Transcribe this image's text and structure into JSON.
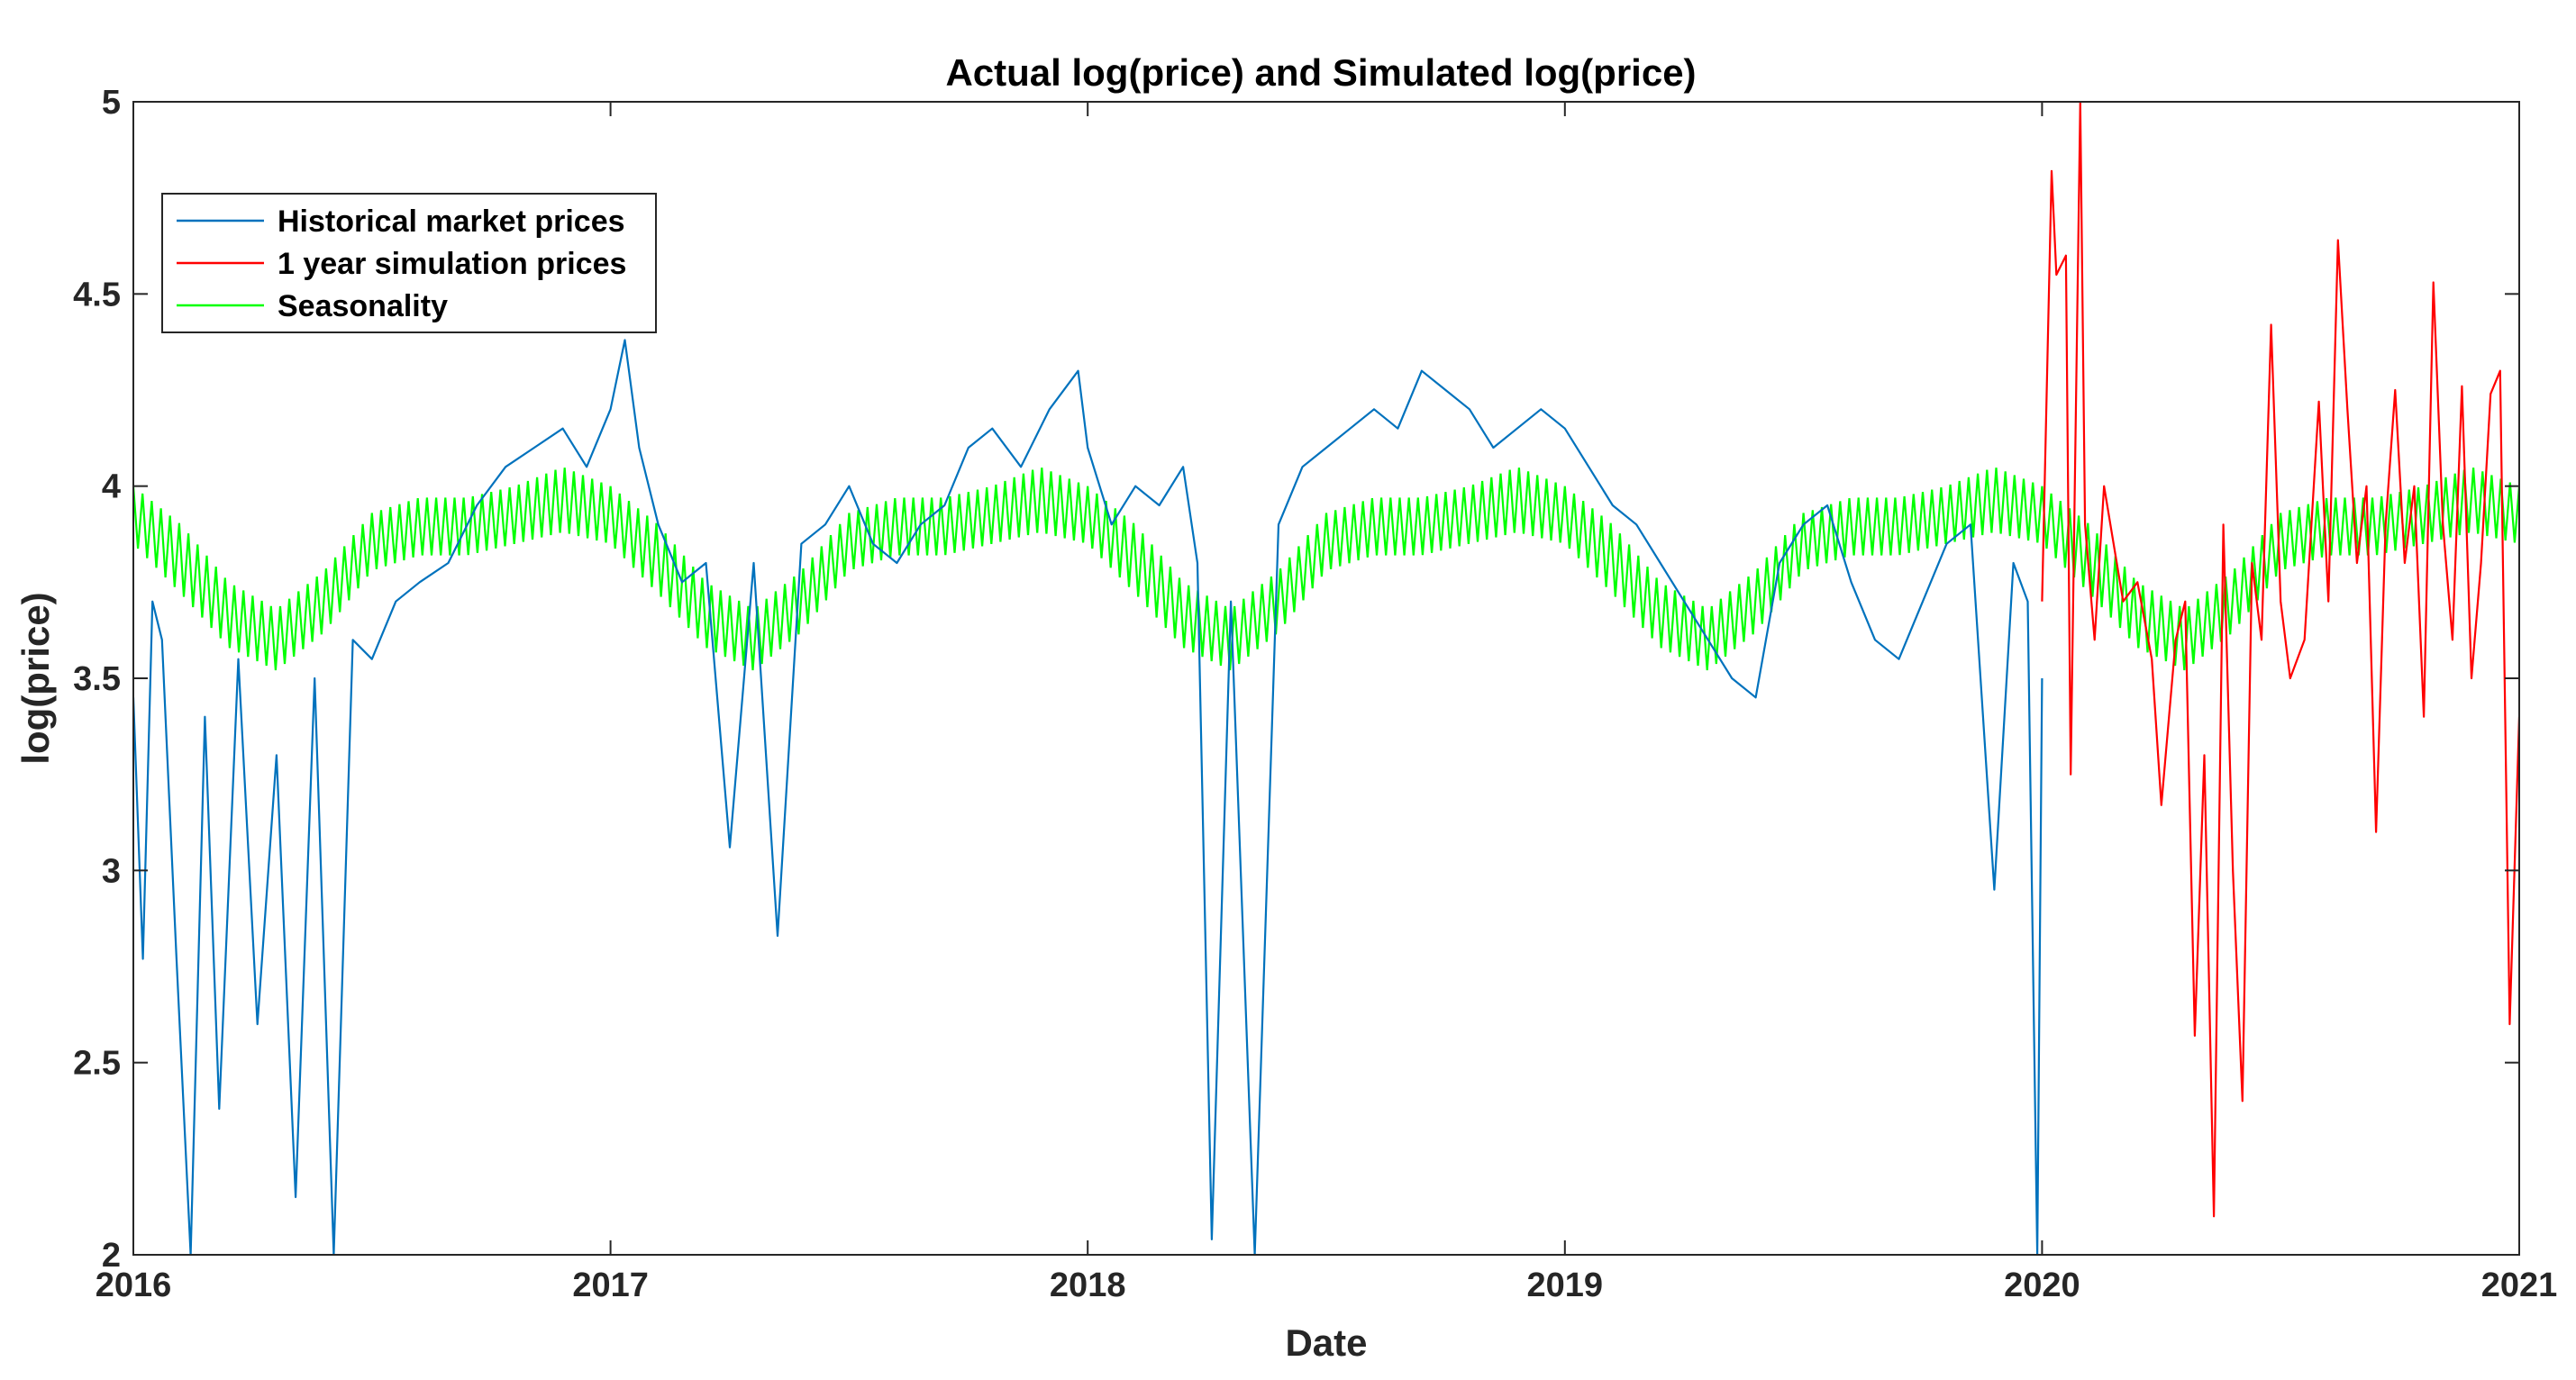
{
  "chart_data": {
    "type": "line",
    "title": "Actual log(price) and Simulated log(price)",
    "xlabel": "Date",
    "ylabel": "log(price)",
    "xlim": [
      2016,
      2021
    ],
    "ylim": [
      2,
      5
    ],
    "x_ticks": [
      "2016",
      "2017",
      "2018",
      "2019",
      "2020",
      "2021"
    ],
    "y_ticks": [
      "2",
      "2.5",
      "3",
      "3.5",
      "4",
      "4.5",
      "5"
    ],
    "legend_position": "top-left",
    "series": [
      {
        "name": "Historical market prices",
        "color": "#0072BD",
        "x": [
          2016.0,
          2016.02,
          2016.04,
          2016.06,
          2016.09,
          2016.12,
          2016.15,
          2016.18,
          2016.22,
          2016.26,
          2016.3,
          2016.34,
          2016.38,
          2016.42,
          2016.46,
          2016.5,
          2016.55,
          2016.6,
          2016.66,
          2016.72,
          2016.78,
          2016.84,
          2016.9,
          2016.95,
          2017.0,
          2017.03,
          2017.06,
          2017.1,
          2017.15,
          2017.2,
          2017.25,
          2017.3,
          2017.35,
          2017.4,
          2017.45,
          2017.5,
          2017.55,
          2017.6,
          2017.65,
          2017.7,
          2017.75,
          2017.8,
          2017.86,
          2017.92,
          2017.98,
          2018.0,
          2018.05,
          2018.1,
          2018.15,
          2018.2,
          2018.23,
          2018.26,
          2018.3,
          2018.35,
          2018.4,
          2018.45,
          2018.5,
          2018.55,
          2018.6,
          2018.65,
          2018.7,
          2018.75,
          2018.8,
          2018.85,
          2018.9,
          2018.95,
          2019.0,
          2019.05,
          2019.1,
          2019.15,
          2019.2,
          2019.25,
          2019.3,
          2019.35,
          2019.4,
          2019.45,
          2019.5,
          2019.55,
          2019.6,
          2019.65,
          2019.7,
          2019.75,
          2019.8,
          2019.85,
          2019.9,
          2019.94,
          2019.97,
          2019.99,
          2020.0
        ],
        "values": [
          3.45,
          2.77,
          3.7,
          3.6,
          2.78,
          2.0,
          3.4,
          2.38,
          3.55,
          2.6,
          3.3,
          2.15,
          3.5,
          2.0,
          3.6,
          3.55,
          3.7,
          3.75,
          3.8,
          3.95,
          4.05,
          4.1,
          4.15,
          4.05,
          4.2,
          4.38,
          4.1,
          3.9,
          3.75,
          3.8,
          3.06,
          3.8,
          2.83,
          3.85,
          3.9,
          4.0,
          3.85,
          3.8,
          3.9,
          3.95,
          4.1,
          4.15,
          4.05,
          4.2,
          4.3,
          4.1,
          3.9,
          4.0,
          3.95,
          4.05,
          3.8,
          2.04,
          3.7,
          2.0,
          3.9,
          4.05,
          4.1,
          4.15,
          4.2,
          4.15,
          4.3,
          4.25,
          4.2,
          4.1,
          4.15,
          4.2,
          4.15,
          4.05,
          3.95,
          3.9,
          3.8,
          3.7,
          3.6,
          3.5,
          3.45,
          3.8,
          3.9,
          3.95,
          3.75,
          3.6,
          3.55,
          3.7,
          3.85,
          3.9,
          2.95,
          3.8,
          3.7,
          2.0,
          3.5
        ]
      },
      {
        "name": "1 year simulation prices",
        "color": "#FF0000",
        "x": [
          2020.0,
          2020.02,
          2020.03,
          2020.05,
          2020.06,
          2020.08,
          2020.09,
          2020.11,
          2020.13,
          2020.15,
          2020.17,
          2020.2,
          2020.23,
          2020.25,
          2020.28,
          2020.3,
          2020.32,
          2020.34,
          2020.36,
          2020.38,
          2020.4,
          2020.42,
          2020.44,
          2020.46,
          2020.48,
          2020.5,
          2020.52,
          2020.55,
          2020.58,
          2020.6,
          2020.62,
          2020.64,
          2020.66,
          2020.68,
          2020.7,
          2020.72,
          2020.74,
          2020.76,
          2020.78,
          2020.8,
          2020.82,
          2020.84,
          2020.86,
          2020.88,
          2020.9,
          2020.92,
          2020.94,
          2020.96,
          2020.98,
          2021.0
        ],
        "values": [
          3.7,
          4.82,
          4.55,
          4.6,
          3.25,
          5.0,
          3.9,
          3.6,
          4.0,
          3.85,
          3.7,
          3.75,
          3.55,
          3.17,
          3.6,
          3.7,
          2.57,
          3.3,
          2.1,
          3.9,
          3.0,
          2.4,
          3.8,
          3.6,
          4.42,
          3.7,
          3.5,
          3.6,
          4.22,
          3.7,
          4.64,
          4.2,
          3.8,
          4.0,
          3.1,
          3.9,
          4.25,
          3.8,
          4.0,
          3.4,
          4.53,
          3.9,
          3.6,
          4.26,
          3.5,
          3.8,
          4.24,
          4.3,
          2.6,
          3.4
        ]
      },
      {
        "name": "Seasonality",
        "color": "#00FF00",
        "x": [
          2016.0,
          2016.1,
          2016.2,
          2016.3,
          2016.4,
          2016.5,
          2016.6,
          2016.7,
          2016.8,
          2016.9,
          2017.0,
          2017.1,
          2017.2,
          2017.3,
          2017.4,
          2017.5,
          2017.6,
          2017.7,
          2017.8,
          2017.9,
          2018.0,
          2018.1,
          2018.2,
          2018.3,
          2018.4,
          2018.5,
          2018.6,
          2018.7,
          2018.8,
          2018.9,
          2019.0,
          2019.1,
          2019.2,
          2019.3,
          2019.4,
          2019.5,
          2019.6,
          2019.7,
          2019.8,
          2019.9,
          2020.0,
          2020.1,
          2020.2,
          2020.3,
          2020.4,
          2020.5,
          2020.6,
          2020.7,
          2020.8,
          2020.9,
          2021.0
        ],
        "upper": [
          4.0,
          3.9,
          3.75,
          3.68,
          3.78,
          3.93,
          3.97,
          3.97,
          4.0,
          4.05,
          4.0,
          3.9,
          3.75,
          3.68,
          3.78,
          3.93,
          3.97,
          3.97,
          4.0,
          4.05,
          4.0,
          3.9,
          3.75,
          3.68,
          3.78,
          3.93,
          3.97,
          3.97,
          4.0,
          4.05,
          4.0,
          3.9,
          3.75,
          3.68,
          3.78,
          3.93,
          3.97,
          3.97,
          4.0,
          4.05,
          4.0,
          3.9,
          3.75,
          3.68,
          3.78,
          3.93,
          3.97,
          3.97,
          4.0,
          4.05,
          4.0
        ],
        "lower": [
          3.85,
          3.72,
          3.58,
          3.52,
          3.62,
          3.78,
          3.82,
          3.82,
          3.85,
          3.88,
          3.85,
          3.72,
          3.58,
          3.52,
          3.62,
          3.78,
          3.82,
          3.82,
          3.85,
          3.88,
          3.85,
          3.72,
          3.58,
          3.52,
          3.62,
          3.78,
          3.82,
          3.82,
          3.85,
          3.88,
          3.85,
          3.72,
          3.58,
          3.52,
          3.62,
          3.78,
          3.82,
          3.82,
          3.85,
          3.88,
          3.85,
          3.72,
          3.58,
          3.52,
          3.62,
          3.78,
          3.82,
          3.82,
          3.85,
          3.88,
          3.85
        ]
      }
    ]
  }
}
